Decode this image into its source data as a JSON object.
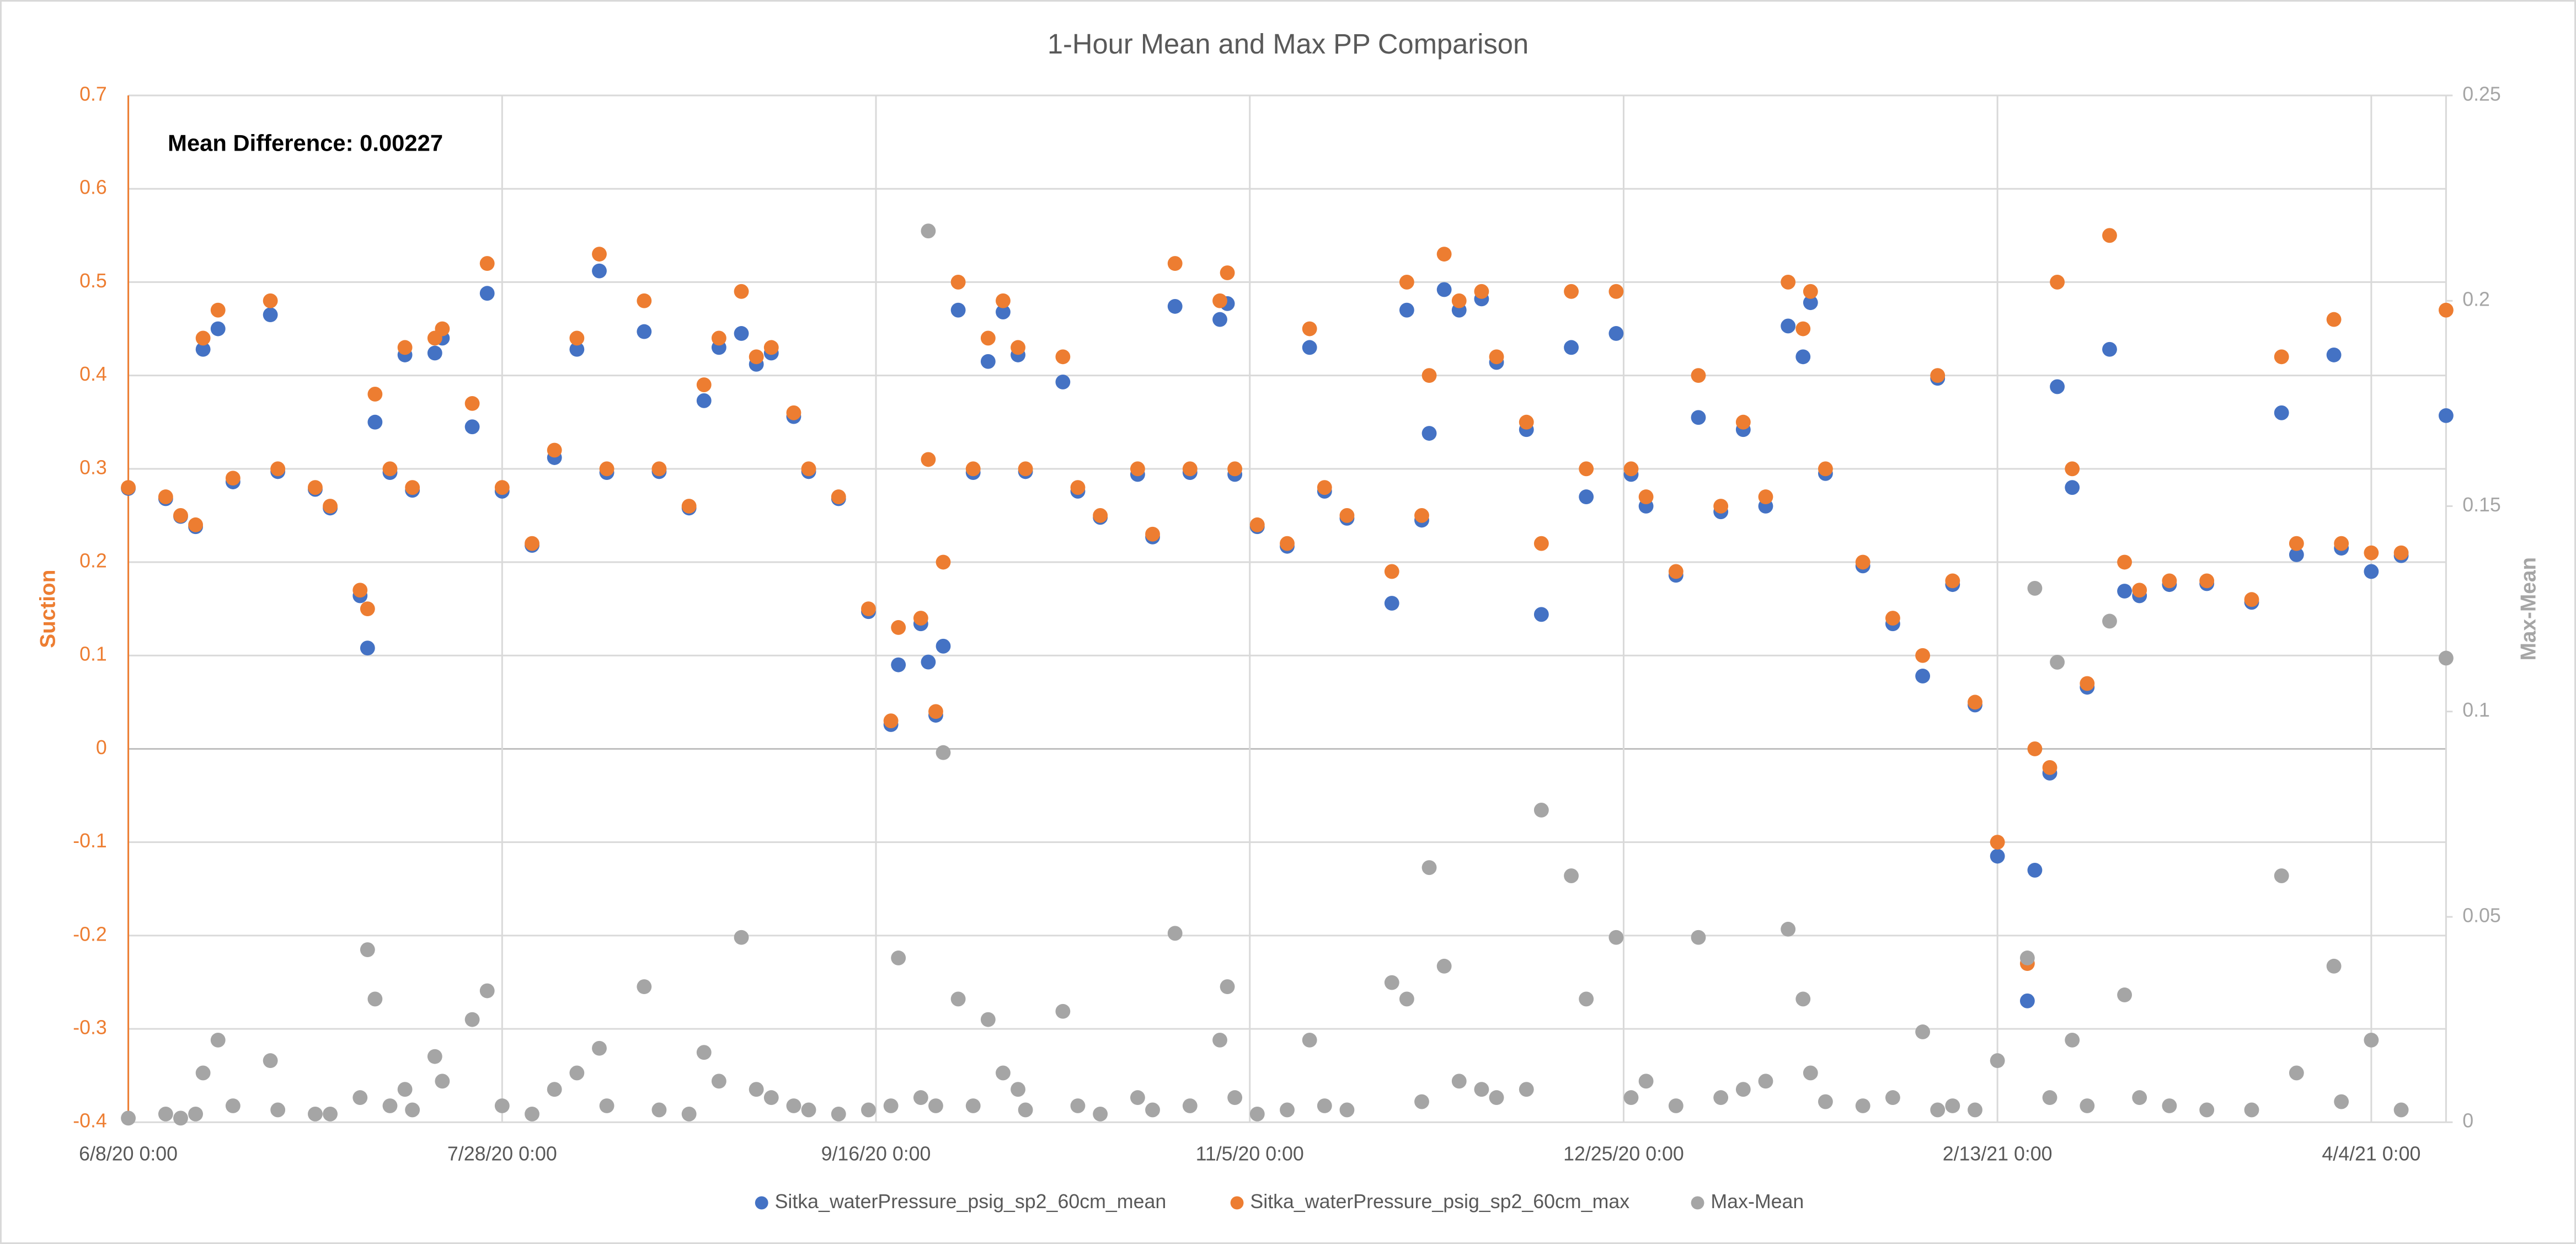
{
  "chart_data": {
    "type": "scatter",
    "title": "1-Hour Mean and Max PP Comparison",
    "annotation": "Mean Difference: 0.00227",
    "ylabel": "Suction",
    "y2label": "Max-Mean",
    "grid": true,
    "legend": "bottom",
    "xlim": [
      "2020-06-08",
      "2021-04-14"
    ],
    "xticks": [
      {
        "value": "2020-06-08",
        "label": "6/8/20 0:00"
      },
      {
        "value": "2020-07-28",
        "label": "7/28/20 0:00"
      },
      {
        "value": "2020-09-16",
        "label": "9/16/20 0:00"
      },
      {
        "value": "2020-11-05",
        "label": "11/5/20 0:00"
      },
      {
        "value": "2020-12-25",
        "label": "12/25/20 0:00"
      },
      {
        "value": "2021-02-13",
        "label": "2/13/21 0:00"
      },
      {
        "value": "2021-04-04",
        "label": "4/4/21 0:00"
      }
    ],
    "ylim": [
      -0.4,
      0.7
    ],
    "yticks": [
      -0.4,
      -0.3,
      -0.2,
      -0.1,
      0,
      0.1,
      0.2,
      0.3,
      0.4,
      0.5,
      0.6,
      0.7
    ],
    "y2lim": [
      0,
      0.25
    ],
    "y2ticks": [
      0,
      0.05,
      0.1,
      0.15,
      0.2,
      0.25
    ],
    "x": [
      "2020-06-08",
      "2020-06-13",
      "2020-06-15",
      "2020-06-17",
      "2020-06-18",
      "2020-06-20",
      "2020-06-22",
      "2020-06-27",
      "2020-06-28",
      "2020-07-03",
      "2020-07-05",
      "2020-07-09",
      "2020-07-10",
      "2020-07-11",
      "2020-07-13",
      "2020-07-15",
      "2020-07-16",
      "2020-07-19",
      "2020-07-20",
      "2020-07-24",
      "2020-07-26",
      "2020-07-28",
      "2020-08-01",
      "2020-08-04",
      "2020-08-07",
      "2020-08-10",
      "2020-08-11",
      "2020-08-16",
      "2020-08-18",
      "2020-08-22",
      "2020-08-24",
      "2020-08-26",
      "2020-08-29",
      "2020-08-31",
      "2020-09-02",
      "2020-09-05",
      "2020-09-07",
      "2020-09-11",
      "2020-09-15",
      "2020-09-18",
      "2020-09-19",
      "2020-09-22",
      "2020-09-23",
      "2020-09-24",
      "2020-09-25",
      "2020-09-27",
      "2020-09-29",
      "2020-10-01",
      "2020-10-03",
      "2020-10-05",
      "2020-10-06",
      "2020-10-11",
      "2020-10-13",
      "2020-10-16",
      "2020-10-21",
      "2020-10-23",
      "2020-10-26",
      "2020-10-28",
      "2020-11-01",
      "2020-11-02",
      "2020-11-03",
      "2020-11-06",
      "2020-11-10",
      "2020-11-13",
      "2020-11-15",
      "2020-11-18",
      "2020-11-24",
      "2020-11-26",
      "2020-11-28",
      "2020-11-29",
      "2020-12-01",
      "2020-12-03",
      "2020-12-06",
      "2020-12-08",
      "2020-12-12",
      "2020-12-14",
      "2020-12-18",
      "2020-12-20",
      "2020-12-24",
      "2020-12-26",
      "2020-12-28",
      "2021-01-01",
      "2021-01-04",
      "2021-01-07",
      "2021-01-10",
      "2021-01-13",
      "2021-01-16",
      "2021-01-18",
      "2021-01-19",
      "2021-01-21",
      "2021-01-26",
      "2021-01-30",
      "2021-02-03",
      "2021-02-05",
      "2021-02-07",
      "2021-02-10",
      "2021-02-13",
      "2021-02-17",
      "2021-02-18",
      "2021-02-20",
      "2021-02-21",
      "2021-02-23",
      "2021-02-25",
      "2021-02-28",
      "2021-03-02",
      "2021-03-04",
      "2021-03-08",
      "2021-03-13",
      "2021-03-19",
      "2021-03-23",
      "2021-03-25",
      "2021-03-30",
      "2021-03-31",
      "2021-04-04",
      "2021-04-08",
      "2021-04-14"
    ],
    "series": [
      {
        "name": "Sitka_waterPressure_psig_sp2_60cm_mean",
        "color": "#4472c4",
        "values": [
          0.279,
          0.268,
          0.249,
          0.238,
          0.428,
          0.45,
          0.286,
          0.465,
          0.297,
          0.278,
          0.258,
          0.164,
          0.108,
          0.35,
          0.296,
          0.422,
          0.277,
          0.424,
          0.44,
          0.345,
          0.488,
          0.276,
          0.218,
          0.312,
          0.428,
          0.512,
          0.296,
          0.447,
          0.297,
          0.258,
          0.373,
          0.43,
          0.445,
          0.412,
          0.424,
          0.356,
          0.297,
          0.268,
          0.147,
          0.026,
          0.09,
          0.134,
          0.093,
          0.036,
          0.11,
          0.47,
          0.296,
          0.415,
          0.468,
          0.422,
          0.297,
          0.393,
          0.276,
          0.248,
          0.294,
          0.227,
          0.474,
          0.296,
          0.46,
          0.477,
          0.294,
          0.238,
          0.217,
          0.43,
          0.276,
          0.247,
          0.156,
          0.47,
          0.245,
          0.338,
          0.492,
          0.47,
          0.482,
          0.414,
          0.342,
          0.144,
          0.43,
          0.27,
          0.445,
          0.294,
          0.26,
          0.186,
          0.355,
          0.254,
          0.342,
          0.26,
          0.453,
          0.42,
          0.478,
          0.295,
          0.196,
          0.134,
          0.078,
          0.397,
          0.176,
          0.047,
          -0.115,
          -0.27,
          -0.13,
          -0.026,
          0.388,
          0.28,
          0.066,
          0.428,
          0.169,
          0.164,
          0.176,
          0.177,
          0.157,
          0.36,
          0.208,
          0.422,
          0.215,
          0.19,
          0.207,
          0.357
        ]
      },
      {
        "name": "Sitka_waterPressure_psig_sp2_60cm_max",
        "color": "#ed7d31",
        "values": [
          0.28,
          0.27,
          0.25,
          0.24,
          0.44,
          0.47,
          0.29,
          0.48,
          0.3,
          0.28,
          0.26,
          0.17,
          0.15,
          0.38,
          0.3,
          0.43,
          0.28,
          0.44,
          0.45,
          0.37,
          0.52,
          0.28,
          0.22,
          0.32,
          0.44,
          0.53,
          0.3,
          0.48,
          0.3,
          0.26,
          0.39,
          0.44,
          0.49,
          0.42,
          0.43,
          0.36,
          0.3,
          0.27,
          0.15,
          0.03,
          0.13,
          0.14,
          0.31,
          0.04,
          0.2,
          0.5,
          0.3,
          0.44,
          0.48,
          0.43,
          0.3,
          0.42,
          0.28,
          0.25,
          0.3,
          0.23,
          0.52,
          0.3,
          0.48,
          0.51,
          0.3,
          0.24,
          0.22,
          0.45,
          0.28,
          0.25,
          0.19,
          0.5,
          0.25,
          0.4,
          0.53,
          0.48,
          0.49,
          0.42,
          0.35,
          0.22,
          0.49,
          0.3,
          0.49,
          0.3,
          0.27,
          0.19,
          0.4,
          0.26,
          0.35,
          0.27,
          0.5,
          0.45,
          0.49,
          0.3,
          0.2,
          0.14,
          0.1,
          0.4,
          0.18,
          0.05,
          -0.1,
          -0.23,
          0.0,
          -0.02,
          0.5,
          0.3,
          0.07,
          0.55,
          0.2,
          0.17,
          0.18,
          0.18,
          0.16,
          0.42,
          0.22,
          0.46,
          0.22,
          0.21,
          0.21,
          0.47
        ]
      },
      {
        "name": "Max-Mean",
        "color": "#a5a5a5",
        "axis": "y2",
        "values": [
          0.001,
          0.002,
          0.001,
          0.002,
          0.012,
          0.02,
          0.004,
          0.015,
          0.003,
          0.002,
          0.002,
          0.006,
          0.042,
          0.03,
          0.004,
          0.008,
          0.003,
          0.016,
          0.01,
          0.025,
          0.032,
          0.004,
          0.002,
          0.008,
          0.012,
          0.018,
          0.004,
          0.033,
          0.003,
          0.002,
          0.017,
          0.01,
          0.045,
          0.008,
          0.006,
          0.004,
          0.003,
          0.002,
          0.003,
          0.004,
          0.04,
          0.006,
          0.217,
          0.004,
          0.09,
          0.03,
          0.004,
          0.025,
          0.012,
          0.008,
          0.003,
          0.027,
          0.004,
          0.002,
          0.006,
          0.003,
          0.046,
          0.004,
          0.02,
          0.033,
          0.006,
          0.002,
          0.003,
          0.02,
          0.004,
          0.003,
          0.034,
          0.03,
          0.005,
          0.062,
          0.038,
          0.01,
          0.008,
          0.006,
          0.008,
          0.076,
          0.06,
          0.03,
          0.045,
          0.006,
          0.01,
          0.004,
          0.045,
          0.006,
          0.008,
          0.01,
          0.047,
          0.03,
          0.012,
          0.005,
          0.004,
          0.006,
          0.022,
          0.003,
          0.004,
          0.003,
          0.015,
          0.04,
          0.13,
          0.006,
          0.112,
          0.02,
          0.004,
          0.122,
          0.031,
          0.006,
          0.004,
          0.003,
          0.003,
          0.06,
          0.012,
          0.038,
          0.005,
          0.02,
          0.003,
          0.113
        ]
      }
    ]
  }
}
